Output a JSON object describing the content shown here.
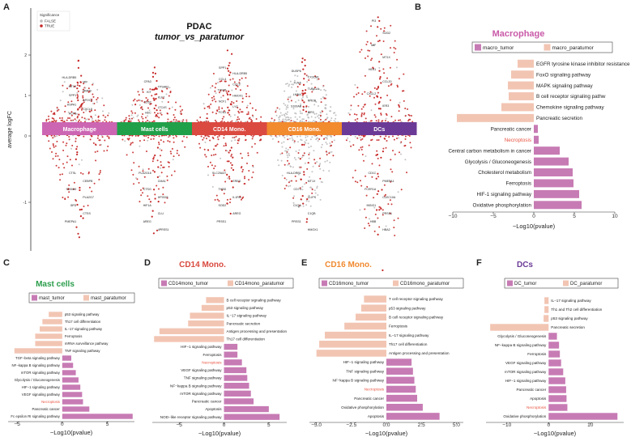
{
  "figure": {
    "panel_letters": [
      "A",
      "B",
      "C",
      "D",
      "E",
      "F"
    ]
  },
  "colors": {
    "tumor": "#c77bb4",
    "paratumor": "#f2c5b3",
    "necroptosis": "#e8523f",
    "dot_true": "#c62828",
    "dot_false": "#bdbdbd",
    "title_macrophage": "#c95aa8",
    "title_mast": "#2a9d4b",
    "title_cd14": "#d94a3f",
    "title_cd16": "#f08a30",
    "title_dcs": "#6a3a96"
  },
  "volcano": {
    "title": "PDAC",
    "subtitle": "tumor_vs_paratumor",
    "ylabel": "average logFC",
    "y_ticks": [
      "2",
      "1",
      "0",
      "-1"
    ],
    "legend": {
      "title": "Significance",
      "false_label": "FALSE",
      "true_label": "TRUE"
    },
    "groups": [
      {
        "name": "Macrophage",
        "color": "#cc66b3",
        "up_genes": [
          "HLA-DRB5",
          "MIF",
          "MT1X",
          "MMP9",
          "SPP1",
          "APOC1",
          "HSPA1",
          "CXCL8",
          "ACP5"
        ],
        "down_genes": [
          "CTSL",
          "CEBPB",
          "S100A9",
          "PLA2G7",
          "CFD",
          "CTSS",
          "PMEPA1"
        ]
      },
      {
        "name": "Mast cells",
        "color": "#21a04a",
        "up_genes": [
          "CPA3",
          "TPSAB1",
          "KIT",
          "KLF2",
          "CD52",
          "LTC4S",
          "HDC"
        ],
        "down_genes": [
          "PLA2G16",
          "CMA1",
          "CTSG",
          "HPGDS",
          "HIF1A",
          "CLU",
          "AREG",
          "4PRSS1"
        ]
      },
      {
        "name": "CD14 Mono.",
        "color": "#db4a40",
        "up_genes": [
          "SPP1",
          "HLA-DRB5",
          "CCL4",
          "CCL3",
          "TXNIP",
          "HMOX1",
          "NCF1",
          "LYZ",
          "FCN1"
        ],
        "down_genes": [
          "SLC25A37",
          "EREG",
          "THBD",
          "IL1RN",
          "SOD2",
          "AREG",
          "PRSS1"
        ]
      },
      {
        "name": "CD16 Mono.",
        "color": "#f28a2e",
        "up_genes": [
          "DUSP6",
          "CX3CR1",
          "FLNA",
          "TUBA1A",
          "LMNA",
          "RHOB",
          "S100A8",
          "IER3"
        ],
        "down_genes": [
          "HLA-DRB1",
          "MT1X",
          "CD74",
          "CLIPS",
          "C1QA",
          "C1QB",
          "PRSS1",
          "HMOX1"
        ]
      },
      {
        "name": "DCs",
        "color": "#6b3a96",
        "up_genes": [
          "PI3",
          "SOD2",
          "MIF",
          "MT1X",
          "HES1",
          "CCL20",
          "CXCL2",
          "IER3"
        ],
        "down_genes": [
          "CD1C",
          "PMEPA1",
          "FCER1A",
          "CLEC10A",
          "INSIG1",
          "PRSS1",
          "HBB",
          "HBA2"
        ]
      }
    ]
  },
  "chart_data": [
    {
      "panel": "B",
      "type": "bar",
      "title": "Macrophage",
      "legend": [
        "macro_tumor",
        "macro_paratumor"
      ],
      "xlabel": "−Log10(pvalue)",
      "xlim": [
        -10,
        10
      ],
      "x_ticks": [
        -10,
        -5,
        0,
        5,
        10
      ],
      "x_tick_labels": [
        "−10",
        "−5",
        "0",
        "5",
        "10"
      ],
      "categories": [
        "EGFR tyrosine kinase inhibitor resistance",
        "FoxO signaling pathway",
        "MAPK signaling pathway",
        "B cell receptor signaling pathw",
        "Chemokine signaling pathway",
        "Pancreatic secretion",
        "Pancreatic cancer",
        "Necroptosis",
        "Central carbon metabolism in cancer",
        "Glycolysis / Gluconeogenesis",
        "Cholesterol metabolism",
        "Ferroptosis",
        "HIF-1 signaling pathway",
        "Oxidative phosphorylation"
      ],
      "values": [
        -2.0,
        -2.8,
        -3.2,
        -3.1,
        -4.0,
        -9.5,
        0.5,
        0.6,
        3.2,
        4.3,
        4.8,
        4.9,
        5.6,
        5.9
      ],
      "groups": [
        "paratumor",
        "paratumor",
        "paratumor",
        "paratumor",
        "paratumor",
        "paratumor",
        "tumor",
        "tumor",
        "tumor",
        "tumor",
        "tumor",
        "tumor",
        "tumor",
        "tumor"
      ]
    },
    {
      "panel": "C",
      "type": "bar",
      "title": "Mast cells",
      "legend": [
        "mast_tumor",
        "mast_paratumor"
      ],
      "xlabel": "−Log10(pvalue)",
      "xlim": [
        -6,
        8
      ],
      "x_ticks": [
        -5,
        0,
        5
      ],
      "x_tick_labels": [
        "−5",
        "0",
        "5"
      ],
      "categories": [
        "p53 signaling pathway",
        "Th17 cell differentiation",
        "IL−17 signaling pathway",
        "Ferroptosis",
        "mRNA surveillance pathway",
        "TNF signaling pathway",
        "TGF−beta signaling pathway",
        "NF−kappa B signaling pathway",
        "mTOR signaling pathway",
        "Glycolysis / Gluconeogenesis",
        "HIF−1 signaling pathway",
        "VEGF signaling pathway",
        "Necroptosis",
        "Pancreatic cancer",
        "Fc epsilon RI signaling pathway"
      ],
      "values": [
        -1.5,
        -2.2,
        -2.5,
        -3.0,
        -3.0,
        -5.3,
        1.0,
        1.2,
        1.5,
        1.8,
        2.0,
        2.2,
        2.3,
        3.0,
        7.8
      ],
      "groups": [
        "paratumor",
        "paratumor",
        "paratumor",
        "paratumor",
        "paratumor",
        "paratumor",
        "tumor",
        "tumor",
        "tumor",
        "tumor",
        "tumor",
        "tumor",
        "tumor",
        "tumor",
        "tumor"
      ]
    },
    {
      "panel": "D",
      "type": "bar",
      "title": "CD14 Mono.",
      "legend": [
        "CD14mono_tumor",
        "CD14mono_paratumor"
      ],
      "xlabel": "−Log10(pvalue)",
      "xlim": [
        -8,
        7
      ],
      "x_ticks": [
        -5,
        0,
        5
      ],
      "x_tick_labels": [
        "−5",
        "0",
        "5"
      ],
      "categories": [
        "B cell receptor signaling pathway",
        "p53 signaling pathway",
        "IL−17 signaling pathway",
        "Pancreatic secretion",
        "Antigen processing and presentation",
        "Th17 cell differentiation",
        "HIF−1 signaling pathway",
        "Ferroptosis",
        "Necroptosis",
        "VEGF signaling pathway",
        "TNF signaling pathway",
        "NF−kappa B signaling pathway",
        "mTOR signaling pathway",
        "Pancreatic cancer",
        "Apoptosis",
        "NOD−like receptor signaling pathway"
      ],
      "values": [
        -2.0,
        -2.5,
        -3.8,
        -4.0,
        -7.2,
        -7.8,
        1.5,
        1.5,
        2.0,
        2.5,
        2.6,
        2.8,
        3.0,
        3.3,
        5.0,
        6.2
      ],
      "groups": [
        "paratumor",
        "paratumor",
        "paratumor",
        "paratumor",
        "paratumor",
        "paratumor",
        "tumor",
        "tumor",
        "tumor",
        "tumor",
        "tumor",
        "tumor",
        "tumor",
        "tumor",
        "tumor",
        "tumor"
      ]
    },
    {
      "panel": "E",
      "type": "bar",
      "title": "CD16 Mono.",
      "legend": [
        "CD16mono_tumor",
        "CD16mono_paratumor"
      ],
      "xlabel": "−Log10(pvalue)",
      "xlim": [
        -5.5,
        5.5
      ],
      "x_ticks": [
        -5.0,
        -2.5,
        0.0,
        2.5,
        5.0
      ],
      "x_tick_labels": [
        "−5.0",
        "−2.5",
        "0.0",
        "2.5",
        "5.0"
      ],
      "categories": [
        "T cell receptor signaling pathway",
        "p53 signaling pathway",
        "B cell receptor signaling pathway",
        "Ferroptosis",
        "IL−17 signaling pathway",
        "Th17 cell differentiation",
        "Antigen processing and presentation",
        "HIF−1 signaling pathway",
        "TNF signaling pathway",
        "NF−kappa B signaling pathway",
        "Necroptosis",
        "Pancreatic cancer",
        "Oxidative phosphorylation",
        "Apoptosis"
      ],
      "values": [
        -1.6,
        -1.8,
        -2.2,
        -3.0,
        -4.4,
        -4.8,
        -5.0,
        1.8,
        1.9,
        2.0,
        2.1,
        2.2,
        2.6,
        3.8
      ],
      "groups": [
        "paratumor",
        "paratumor",
        "paratumor",
        "paratumor",
        "paratumor",
        "paratumor",
        "paratumor",
        "tumor",
        "tumor",
        "tumor",
        "tumor",
        "tumor",
        "tumor",
        "tumor"
      ]
    },
    {
      "panel": "F",
      "type": "bar",
      "title": "DCs",
      "legend": [
        "DC_tumor",
        "DC_paratumor"
      ],
      "xlabel": "−Log10(pvalue)",
      "xlim": [
        -15,
        18
      ],
      "x_ticks": [
        -10,
        0,
        10
      ],
      "x_tick_labels": [
        "−10",
        "0",
        "10"
      ],
      "categories": [
        "IL−17 signaling pathway",
        "Th1 and Th2 cell differentiation",
        "p53 signaling pathway",
        "Pancreatic secretion",
        "Glycolysis / Gluconeogenesis",
        "NF−kappa B signaling pathway",
        "Ferroptosis",
        "VEGF signaling pathway",
        "mTOR signaling pathway",
        "HIF−1 signaling pathway",
        "Pancreatic cancer",
        "Apoptosis",
        "Necroptosis",
        "Oxidative phosphorylation"
      ],
      "values": [
        -1.0,
        -1.0,
        -1.2,
        -14.0,
        2.0,
        2.5,
        2.7,
        3.0,
        3.5,
        4.0,
        4.2,
        4.3,
        4.5,
        16.5
      ],
      "groups": [
        "paratumor",
        "paratumor",
        "paratumor",
        "paratumor",
        "tumor",
        "tumor",
        "tumor",
        "tumor",
        "tumor",
        "tumor",
        "tumor",
        "tumor",
        "tumor",
        "tumor"
      ]
    }
  ]
}
